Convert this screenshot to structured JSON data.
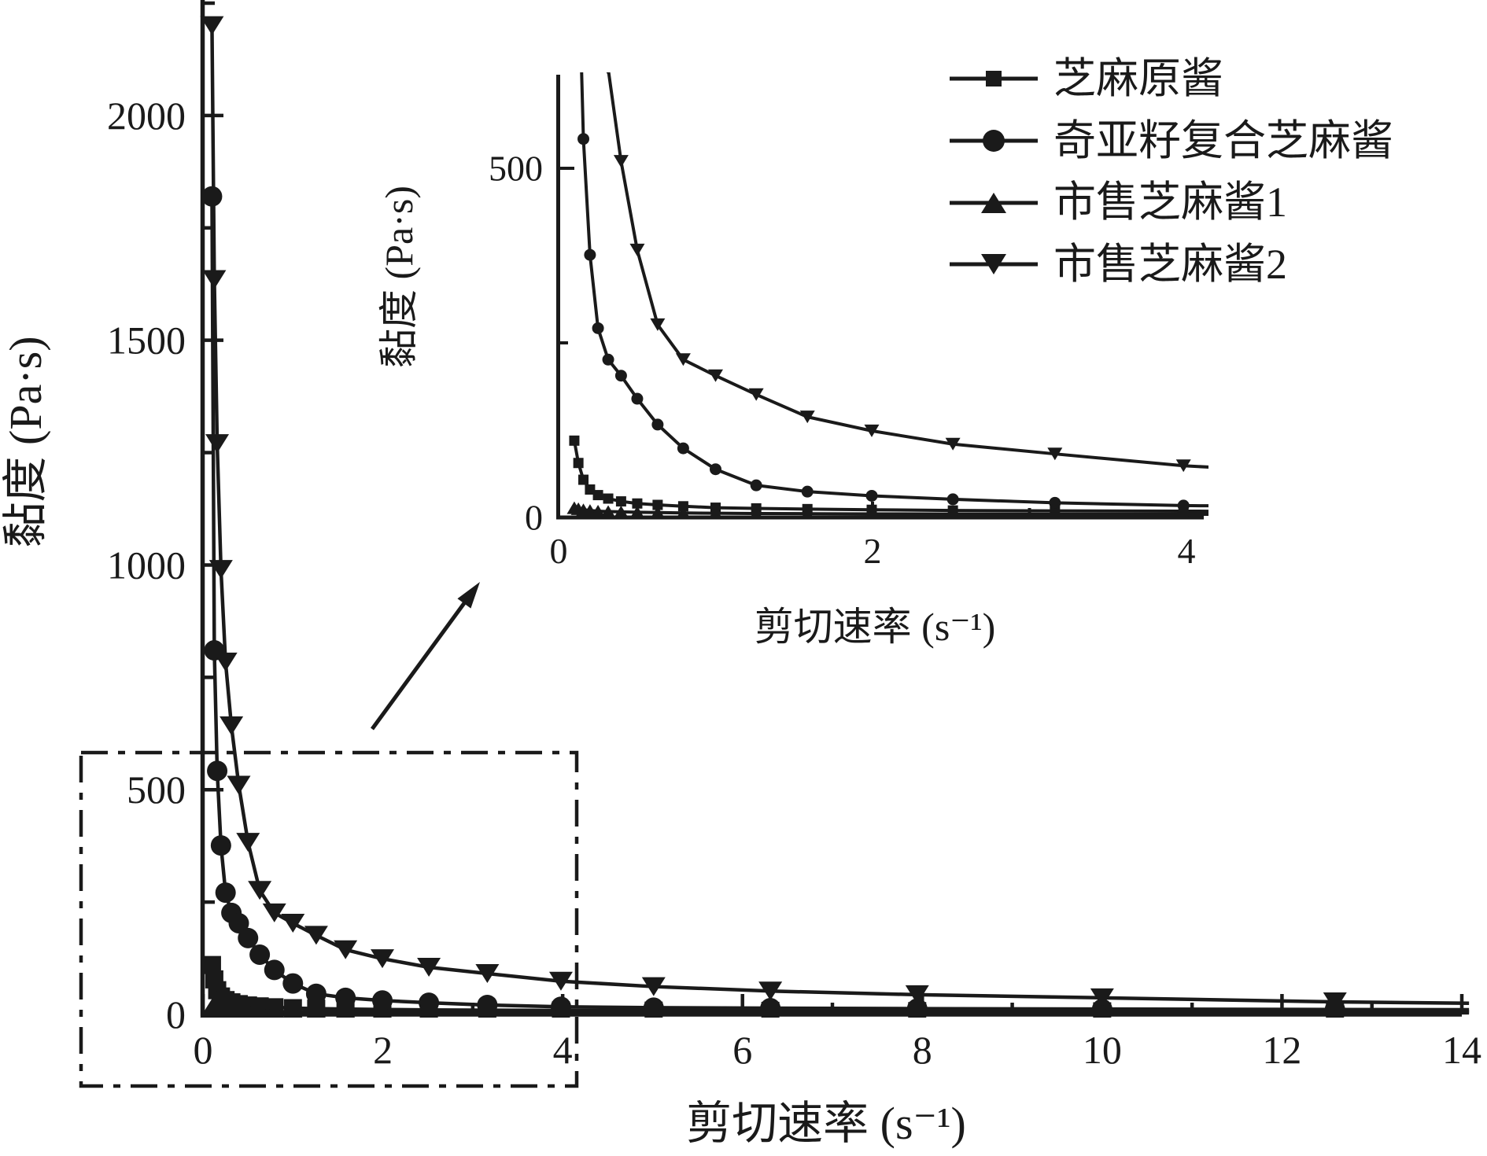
{
  "figure": {
    "background": "#ffffff",
    "ink_color": "#1a1a1a"
  },
  "chart_data": {
    "type": "line",
    "title": "",
    "xlabel": "剪切速率 (s⁻¹)",
    "ylabel": "黏度 (Pa·s)",
    "x": [
      0.1,
      0.126,
      0.158,
      0.2,
      0.251,
      0.316,
      0.398,
      0.501,
      0.631,
      0.794,
      1.0,
      1.259,
      1.585,
      1.995,
      2.512,
      3.162,
      3.981,
      5.012,
      6.31,
      7.943,
      10.0,
      12.589
    ],
    "series": [
      {
        "name": "芝麻原酱",
        "marker": "square",
        "values": [
          110,
          78,
          54,
          40,
          32,
          27,
          23,
          20,
          18,
          16,
          14,
          13,
          12,
          11,
          10,
          9.5,
          9,
          8.5,
          8,
          7.5,
          7,
          6.5
        ],
        "line_end": {
          "x": 14.08,
          "value": 6.3
        }
      },
      {
        "name": "奇亚籽复合芝麻酱",
        "marker": "circle",
        "values": [
          1820,
          810,
          542,
          376,
          271,
          226,
          203,
          170,
          133,
          99,
          69,
          46,
          37,
          31,
          26,
          21,
          17,
          15,
          14,
          13,
          12,
          11
        ],
        "line_end": {
          "x": 14.08,
          "value": 10.5
        }
      },
      {
        "name": "市售芝麻酱1",
        "marker": "triangle-up",
        "values": [
          14,
          12.5,
          11,
          10,
          9,
          8.5,
          8,
          7.5,
          7,
          6.5,
          6,
          5.7,
          5.4,
          5.1,
          4.9,
          4.7,
          4.5,
          4.3,
          4.1,
          4,
          3.9,
          3.8
        ],
        "line_end": {
          "x": 14.08,
          "value": 3.7
        }
      },
      {
        "name": "市售芝麻酱2",
        "marker": "triangle-down",
        "values": [
          2200,
          1635,
          1270,
          990,
          784,
          642,
          510,
          383,
          276,
          226,
          203,
          176,
          144,
          124,
          105,
          91,
          74,
          62,
          52,
          44,
          37,
          28
        ],
        "line_end": {
          "x": 14.08,
          "value": 25
        }
      }
    ],
    "main_axes": {
      "xlabel": "剪切速率 (s⁻¹)",
      "ylabel": "黏度 (Pa·s)",
      "xlim": [
        0,
        14
      ],
      "ylim": [
        0,
        2257
      ],
      "xticks": [
        0,
        2,
        4,
        6,
        8,
        10,
        12,
        14
      ],
      "xminorticks": [
        1,
        3,
        5,
        7,
        9,
        11,
        13
      ],
      "yticks": [
        0,
        500,
        1000,
        1500,
        2000
      ],
      "yminorticks": [
        250,
        750,
        1250,
        1750,
        2250
      ],
      "grid": false
    },
    "inset_axes": {
      "xlabel": "剪切速率 (s⁻¹)",
      "ylabel": "黏度 (Pa·s)",
      "xlim": [
        0,
        4.11
      ],
      "ylim": [
        0,
        630
      ],
      "xticks": [
        0,
        2,
        4
      ],
      "xminorticks": [
        1,
        3
      ],
      "yticks": [
        0,
        500
      ],
      "yminorticks": [
        250
      ],
      "grid": false
    },
    "legend": {
      "position": "top-right",
      "entries": [
        "芝麻原酱",
        "奇亚籽复合芝麻酱",
        "市售芝麻酱1",
        "市售芝麻酱2"
      ]
    },
    "annotations": {
      "zoom_box": "dash-dot rectangle around low shear-rate region (x 0–4, y 0–580)",
      "arrow": "arrow from zoom box pointing to inset plot"
    }
  }
}
